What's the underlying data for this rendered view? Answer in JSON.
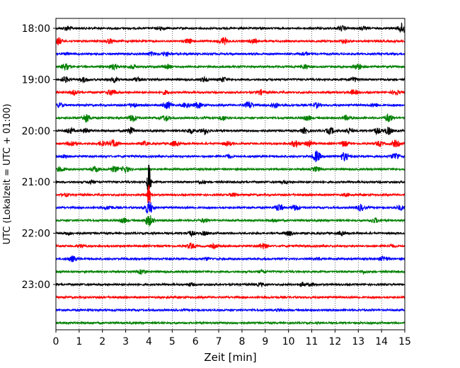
{
  "chart_data": {
    "type": "line",
    "xlabel": "Zeit  [min]",
    "ylabel": "UTC (Lokalzeit = UTC + 01:00)",
    "xlim": [
      0,
      15
    ],
    "x_ticks": [
      "0",
      "1",
      "2",
      "3",
      "4",
      "5",
      "6",
      "7",
      "8",
      "9",
      "10",
      "11",
      "12",
      "13",
      "14",
      "15"
    ],
    "y_ticks": [
      {
        "label": "18:00",
        "row": 0
      },
      {
        "label": "19:00",
        "row": 4
      },
      {
        "label": "20:00",
        "row": 8
      },
      {
        "label": "21:00",
        "row": 12
      },
      {
        "label": "22:00",
        "row": 16
      },
      {
        "label": "23:00",
        "row": 20
      }
    ],
    "rows_per_hour": 4,
    "minutes_per_row": 15,
    "grid": "vertical dotted at each minute",
    "color_cycle": [
      "#000000",
      "#ff0000",
      "#0000ff",
      "#008000"
    ],
    "rows": [
      {
        "start": "18:00",
        "bursts": [
          [
            0.5,
            0.5
          ],
          [
            4.5,
            0.3
          ],
          [
            12.3,
            0.5
          ],
          [
            13.2,
            0.3
          ],
          [
            14.9,
            1.2
          ]
        ]
      },
      {
        "start": "18:15",
        "bursts": [
          [
            0.1,
            0.8
          ],
          [
            2.3,
            0.5
          ],
          [
            5.7,
            0.5
          ],
          [
            7.2,
            0.8
          ],
          [
            8.5,
            0.4
          ],
          [
            12.4,
            0.4
          ]
        ]
      },
      {
        "start": "18:30",
        "bursts": [
          [
            0.5,
            0.2
          ],
          [
            4.1,
            0.4
          ],
          [
            4.7,
            0.4
          ],
          [
            10.7,
            0.4
          ]
        ]
      },
      {
        "start": "18:45",
        "bursts": [
          [
            0.4,
            0.7
          ],
          [
            2.5,
            0.6
          ],
          [
            3.3,
            0.4
          ],
          [
            4.8,
            0.4
          ],
          [
            10.7,
            0.5
          ],
          [
            13,
            0.7
          ]
        ]
      },
      {
        "start": "19:00",
        "bursts": [
          [
            0.4,
            0.6
          ],
          [
            1.2,
            0.5
          ],
          [
            2.5,
            0.5
          ],
          [
            3.5,
            0.4
          ],
          [
            6.4,
            0.5
          ],
          [
            7.2,
            0.5
          ],
          [
            12.8,
            0.5
          ]
        ]
      },
      {
        "start": "19:15",
        "bursts": [
          [
            0.8,
            0.5
          ],
          [
            2.4,
            0.7
          ],
          [
            4.7,
            0.4
          ],
          [
            8.8,
            0.5
          ],
          [
            12.8,
            0.5
          ],
          [
            14.6,
            0.5
          ]
        ]
      },
      {
        "start": "19:30",
        "bursts": [
          [
            0.2,
            0.4
          ],
          [
            3.3,
            0.5
          ],
          [
            4.8,
            0.8
          ],
          [
            5.6,
            0.6
          ],
          [
            6.1,
            0.6
          ],
          [
            8.3,
            0.8
          ],
          [
            9.4,
            0.6
          ],
          [
            11.2,
            0.5
          ],
          [
            13.7,
            0.4
          ]
        ]
      },
      {
        "start": "19:45",
        "bursts": [
          [
            1.3,
            0.9
          ],
          [
            3.3,
            0.8
          ],
          [
            4.7,
            0.6
          ],
          [
            7.2,
            0.5
          ],
          [
            10.8,
            0.5
          ],
          [
            12.5,
            0.5
          ],
          [
            14.3,
            0.9
          ]
        ]
      },
      {
        "start": "20:00",
        "bursts": [
          [
            0.6,
            0.6
          ],
          [
            1.3,
            0.4
          ],
          [
            3.2,
            0.8
          ],
          [
            5.8,
            0.5
          ],
          [
            6.4,
            0.7
          ],
          [
            10.7,
            0.6
          ],
          [
            11.8,
            0.7
          ],
          [
            12.6,
            0.6
          ],
          [
            13.8,
            0.6
          ],
          [
            14.3,
            0.8
          ]
        ]
      },
      {
        "start": "20:15",
        "bursts": [
          [
            0.7,
            0.6
          ],
          [
            2.0,
            0.5
          ],
          [
            2.5,
            0.8
          ],
          [
            3.8,
            0.4
          ],
          [
            5.1,
            0.5
          ],
          [
            7.4,
            0.5
          ],
          [
            10.3,
            0.8
          ],
          [
            10.9,
            0.7
          ],
          [
            12.4,
            0.6
          ],
          [
            13.9,
            0.5
          ],
          [
            14.6,
            0.7
          ]
        ]
      },
      {
        "start": "20:30",
        "bursts": [
          [
            0.4,
            0.3
          ],
          [
            7.4,
            0.4
          ],
          [
            11.2,
            1.2
          ],
          [
            12.4,
            0.9
          ],
          [
            14.6,
            0.8
          ]
        ]
      },
      {
        "start": "20:45",
        "bursts": [
          [
            0.2,
            0.5
          ],
          [
            1.7,
            0.6
          ],
          [
            2.5,
            0.6
          ],
          [
            3.0,
            0.7
          ],
          [
            11.2,
            0.5
          ]
        ]
      },
      {
        "start": "21:00",
        "bursts": [
          [
            1.5,
            0.3
          ],
          [
            4.0,
            4.5
          ],
          [
            6.3,
            0.3
          ],
          [
            9.8,
            0.3
          ]
        ]
      },
      {
        "start": "21:15",
        "bursts": [
          [
            0.4,
            0.3
          ],
          [
            4.0,
            2.8
          ],
          [
            7.6,
            0.3
          ],
          [
            12.5,
            0.3
          ]
        ]
      },
      {
        "start": "21:30",
        "bursts": [
          [
            2.3,
            0.4
          ],
          [
            4.0,
            1.5
          ],
          [
            9.6,
            0.8
          ],
          [
            10.3,
            0.6
          ],
          [
            13.1,
            0.7
          ],
          [
            14.8,
            0.5
          ]
        ]
      },
      {
        "start": "21:45",
        "bursts": [
          [
            2.9,
            0.5
          ],
          [
            4.0,
            1.2
          ],
          [
            6.4,
            0.4
          ],
          [
            9.4,
            0.3
          ],
          [
            13.7,
            0.5
          ]
        ]
      },
      {
        "start": "22:00",
        "bursts": [
          [
            0.5,
            0.3
          ],
          [
            5.8,
            0.5
          ],
          [
            6.4,
            0.4
          ],
          [
            10.0,
            0.5
          ],
          [
            12.3,
            0.4
          ]
        ]
      },
      {
        "start": "22:15",
        "bursts": [
          [
            1.1,
            0.3
          ],
          [
            5.8,
            0.6
          ],
          [
            6.8,
            0.4
          ],
          [
            8.9,
            0.6
          ],
          [
            14.4,
            0.3
          ]
        ]
      },
      {
        "start": "22:30",
        "bursts": [
          [
            0.7,
            0.6
          ],
          [
            6.5,
            0.3
          ],
          [
            11.3,
            0.3
          ],
          [
            14.1,
            0.5
          ]
        ]
      },
      {
        "start": "22:45",
        "bursts": [
          [
            3.7,
            0.5
          ],
          [
            8.9,
            0.3
          ],
          [
            13.2,
            0.3
          ]
        ]
      },
      {
        "start": "23:00",
        "bursts": [
          [
            5.8,
            0.3
          ],
          [
            8.8,
            0.3
          ],
          [
            10.6,
            0.4
          ],
          [
            11.0,
            0.3
          ]
        ]
      },
      {
        "start": "23:15",
        "bursts": []
      },
      {
        "start": "23:30",
        "bursts": [
          [
            9.6,
            0.2
          ]
        ]
      },
      {
        "start": "23:45",
        "bursts": []
      }
    ]
  }
}
